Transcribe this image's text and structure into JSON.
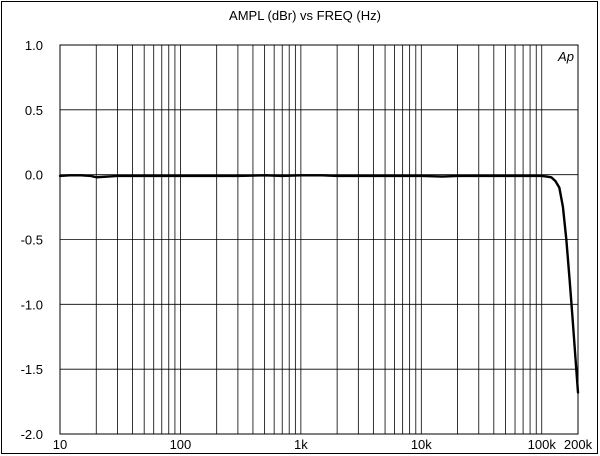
{
  "chart_data": {
    "type": "line",
    "title": "AMPL (dBr)  vs  FREQ (Hz)",
    "logo": "Ap",
    "x_scale": "log",
    "xlim": [
      10,
      200000
    ],
    "ylim": [
      -2.0,
      1.0
    ],
    "grid": true,
    "x_ticks": [
      {
        "value": 10,
        "label": "10"
      },
      {
        "value": 100,
        "label": "100"
      },
      {
        "value": 1000,
        "label": "1k"
      },
      {
        "value": 10000,
        "label": "10k"
      },
      {
        "value": 100000,
        "label": "100k"
      },
      {
        "value": 200000,
        "label": "200k"
      }
    ],
    "y_ticks": [
      {
        "value": 1.0,
        "label": "1.0"
      },
      {
        "value": 0.5,
        "label": "0.5"
      },
      {
        "value": 0.0,
        "label": "0.0"
      },
      {
        "value": -0.5,
        "label": "-0.5"
      },
      {
        "value": -1.0,
        "label": "-1.0"
      },
      {
        "value": -1.5,
        "label": "-1.5"
      },
      {
        "value": -2.0,
        "label": "-2.0"
      }
    ],
    "series": [
      {
        "color": "#000000",
        "x": [
          10,
          12,
          15,
          18,
          20,
          25,
          30,
          40,
          50,
          70,
          100,
          150,
          200,
          300,
          500,
          700,
          1000,
          1500,
          2000,
          3000,
          5000,
          7000,
          10000,
          15000,
          20000,
          30000,
          50000,
          70000,
          100000,
          110000,
          120000,
          130000,
          140000,
          150000,
          160000,
          170000,
          180000,
          190000,
          200000
        ],
        "y": [
          -0.01,
          -0.005,
          -0.005,
          -0.01,
          -0.02,
          -0.015,
          -0.01,
          -0.01,
          -0.01,
          -0.01,
          -0.01,
          -0.01,
          -0.01,
          -0.01,
          -0.005,
          -0.01,
          -0.005,
          -0.005,
          -0.01,
          -0.01,
          -0.01,
          -0.01,
          -0.01,
          -0.015,
          -0.01,
          -0.01,
          -0.01,
          -0.01,
          -0.01,
          -0.015,
          -0.02,
          -0.05,
          -0.1,
          -0.25,
          -0.5,
          -0.8,
          -1.1,
          -1.4,
          -1.68
        ]
      }
    ]
  }
}
